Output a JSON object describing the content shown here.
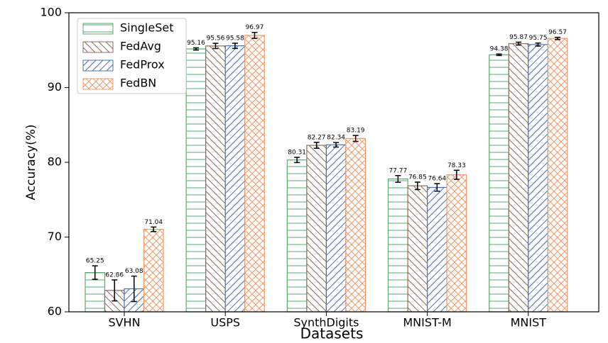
{
  "chart_data": {
    "type": "bar",
    "xlabel": "Datasets",
    "ylabel": "Accuracy(%)",
    "categories": [
      "SVHN",
      "USPS",
      "SynthDigits",
      "MNIST-M",
      "MNIST"
    ],
    "ylim": [
      60,
      100
    ],
    "yticks": [
      60,
      70,
      80,
      90,
      100
    ],
    "legend": "upper left",
    "series": [
      {
        "name": "SingleSet",
        "color": "#5aa870",
        "hatch": "-",
        "values": [
          65.25,
          95.16,
          80.31,
          77.77,
          94.38
        ],
        "errors": [
          0.9,
          0.15,
          0.35,
          0.45,
          0.1
        ]
      },
      {
        "name": "FedAvg",
        "color": "#8c6d5a",
        "hatch": "\\",
        "values": [
          62.86,
          95.56,
          82.27,
          76.85,
          95.87
        ],
        "errors": [
          1.4,
          0.35,
          0.4,
          0.5,
          0.2
        ]
      },
      {
        "name": "FedProx",
        "color": "#4c72b0",
        "hatch": "/",
        "values": [
          63.08,
          95.58,
          82.34,
          76.64,
          95.75
        ],
        "errors": [
          1.7,
          0.35,
          0.3,
          0.5,
          0.2
        ]
      },
      {
        "name": "FedBN",
        "color": "#ee9a6a",
        "hatch": "x",
        "values": [
          71.04,
          96.97,
          83.19,
          78.33,
          96.57
        ],
        "errors": [
          0.3,
          0.4,
          0.4,
          0.6,
          0.15
        ]
      }
    ]
  }
}
